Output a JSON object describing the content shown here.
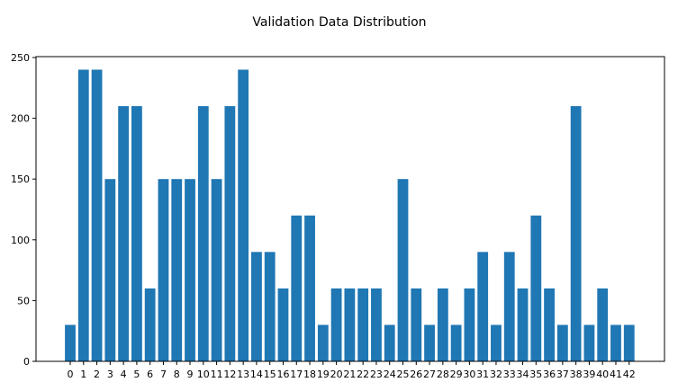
{
  "chart_data": {
    "type": "bar",
    "title": "Validation Data Distribution",
    "xlabel": "",
    "ylabel": "",
    "categories": [
      "0",
      "1",
      "2",
      "3",
      "4",
      "5",
      "6",
      "7",
      "8",
      "9",
      "10",
      "11",
      "12",
      "13",
      "14",
      "15",
      "16",
      "17",
      "18",
      "19",
      "20",
      "21",
      "22",
      "23",
      "24",
      "25",
      "26",
      "27",
      "28",
      "29",
      "30",
      "31",
      "32",
      "33",
      "34",
      "35",
      "36",
      "37",
      "38",
      "39",
      "40",
      "41",
      "42"
    ],
    "values": [
      30,
      240,
      240,
      150,
      210,
      210,
      60,
      150,
      150,
      150,
      210,
      150,
      210,
      240,
      90,
      90,
      60,
      120,
      120,
      30,
      60,
      60,
      60,
      60,
      30,
      150,
      60,
      30,
      60,
      30,
      60,
      90,
      30,
      90,
      60,
      120,
      60,
      30,
      210,
      30,
      60,
      30,
      30
    ],
    "ylim": [
      0,
      250
    ],
    "yticks": [
      0,
      50,
      100,
      150,
      200,
      250
    ],
    "grid": false,
    "bar_color": "#1f77b4"
  }
}
